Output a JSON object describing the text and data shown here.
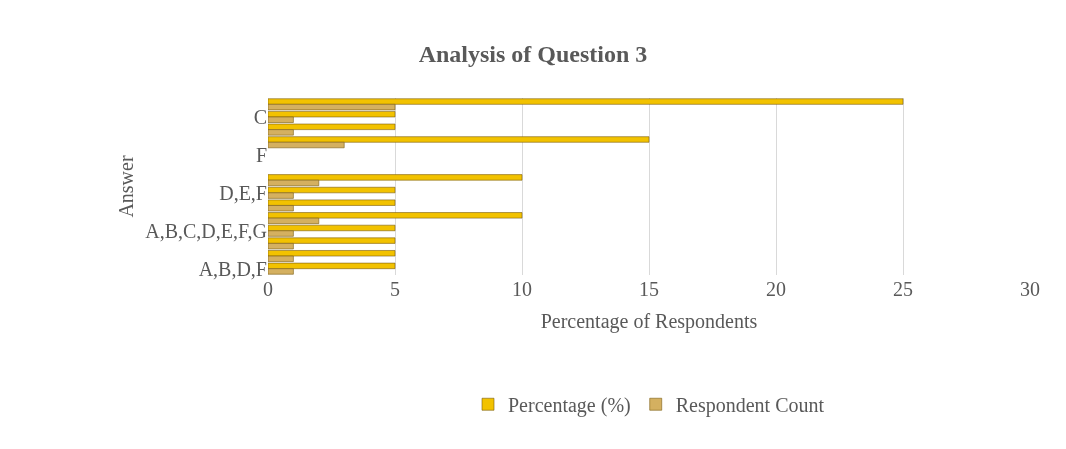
{
  "chart_data": {
    "type": "bar",
    "orientation": "horizontal",
    "title": "Analysis of Question 3",
    "xlabel": "Percentage of Respondents",
    "ylabel": "Answer",
    "categories": [
      null,
      "C",
      null,
      null,
      "F",
      null,
      null,
      "D,E,F",
      null,
      null,
      "A,B,C,D,E,F,G",
      null,
      null,
      "A,B,D,F"
    ],
    "series": [
      {
        "name": "Percentage (%)",
        "color": "#f2c200",
        "values": [
          25,
          5,
          5,
          15,
          null,
          null,
          10,
          5,
          5,
          10,
          5,
          5,
          5,
          5
        ]
      },
      {
        "name": "Respondent Count",
        "color": "#d4b060",
        "values": [
          5,
          1,
          1,
          3,
          null,
          null,
          2,
          1,
          1,
          2,
          1,
          1,
          1,
          1
        ]
      }
    ],
    "xlim": [
      0,
      30
    ],
    "xticks": [
      0,
      5,
      10,
      15,
      20,
      25,
      30
    ],
    "grid": "x",
    "legend": "bottom"
  }
}
